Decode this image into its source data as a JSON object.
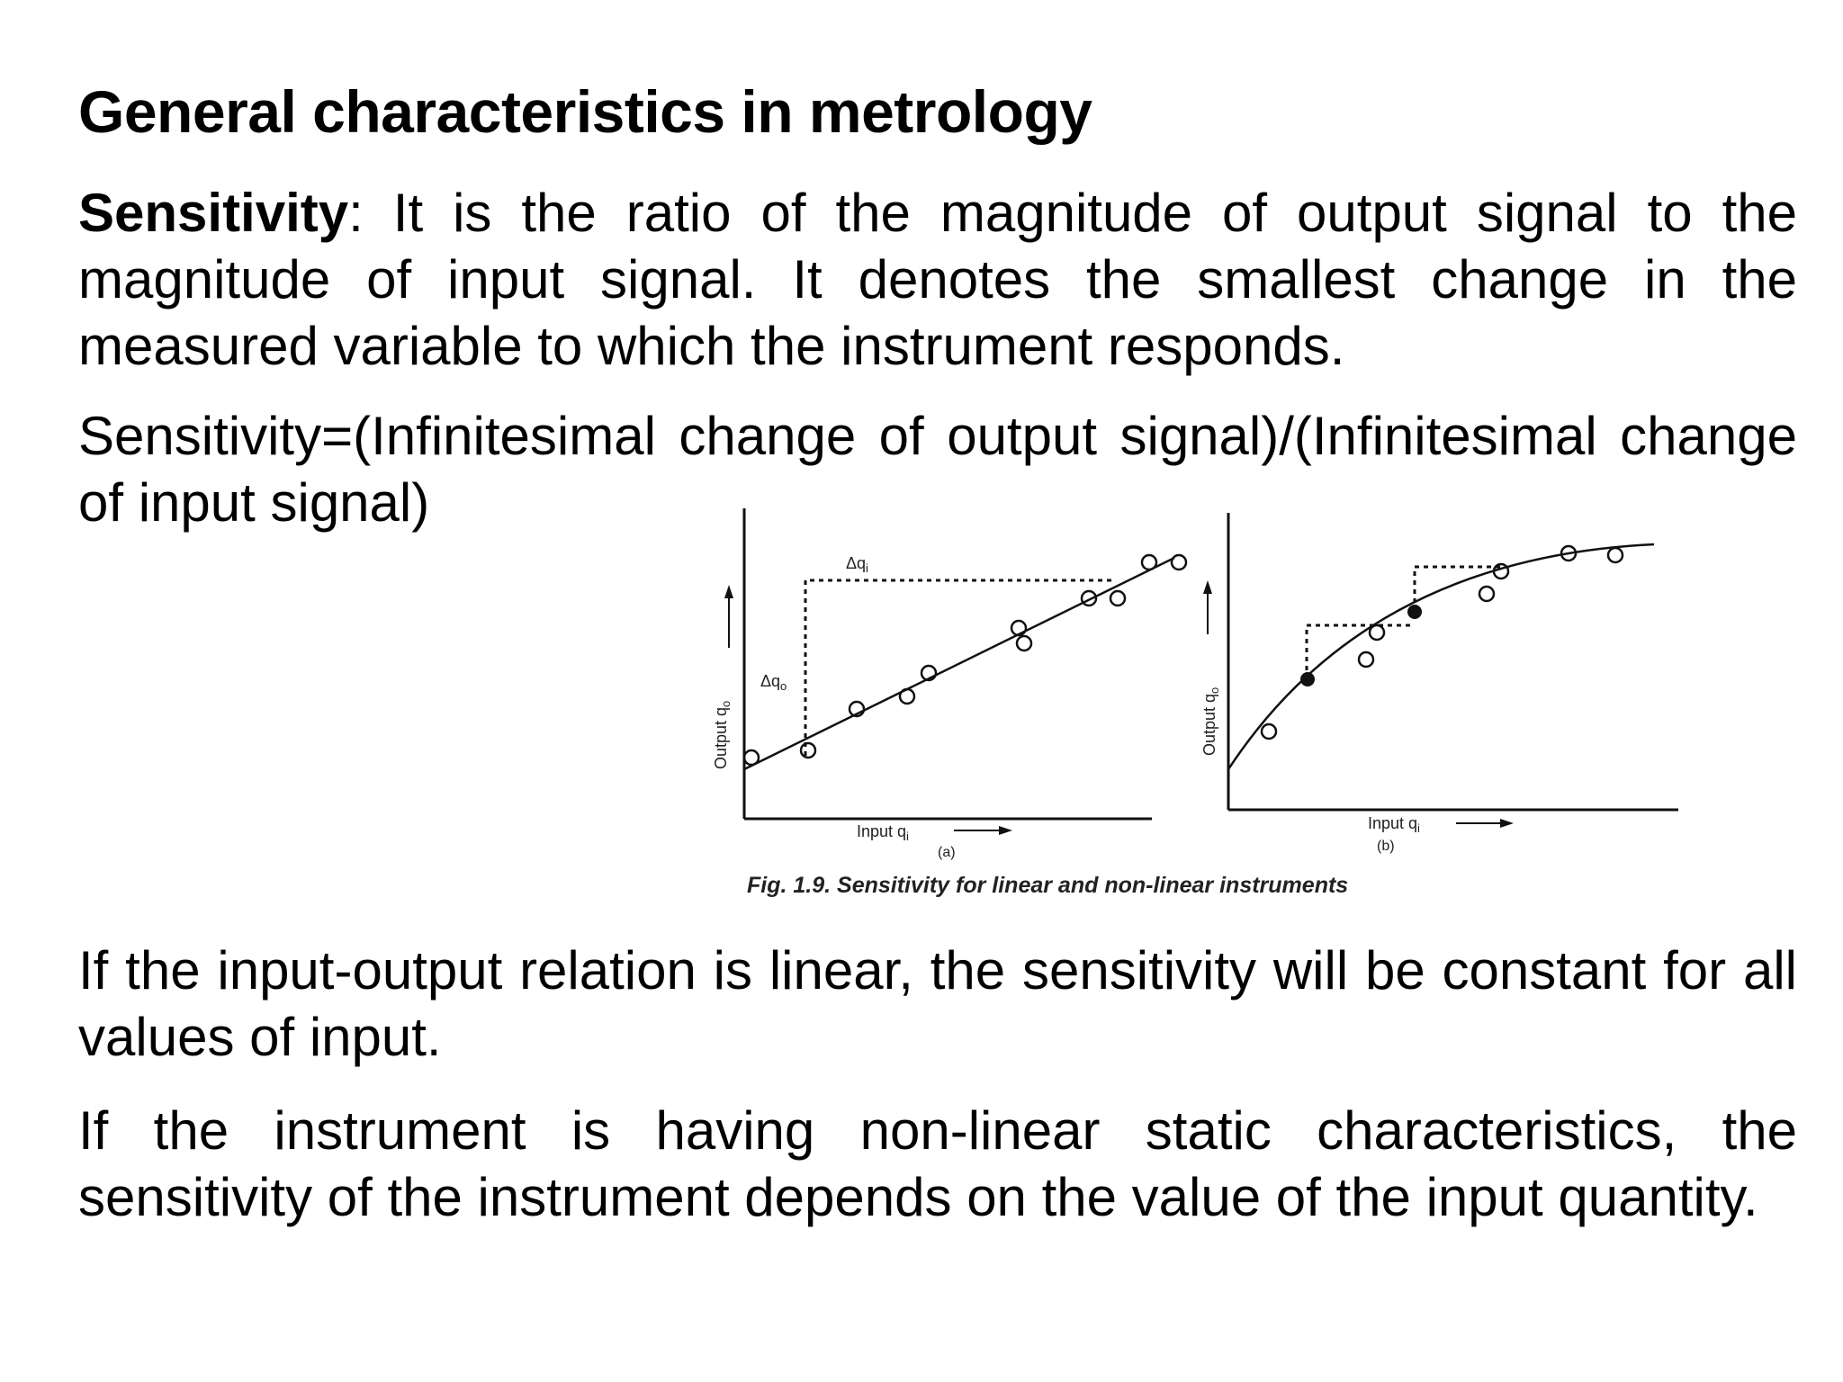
{
  "title": "General characteristics in metrology",
  "paragraph1": {
    "term": "Sensitivity",
    "separator": ":",
    "text": " It is the ratio of the magnitude of output signal to the magnitude of input signal. It denotes the smallest change in the measured variable to which the instrument responds."
  },
  "paragraph2": {
    "text": "Sensitivity=(Infinitesimal change of output signal)/(Infinitesimal change of input signal)"
  },
  "figure": {
    "left_panel": {
      "ylabel": "Output q",
      "ylabel_sub": "o",
      "xlabel": "Input q",
      "xlabel_sub": "i",
      "delta_input": "Δq",
      "delta_input_sub": "i",
      "delta_output": "Δq",
      "delta_output_sub": "o",
      "panel_label": "(a)"
    },
    "right_panel": {
      "ylabel": "Output q",
      "ylabel_sub": "o",
      "xlabel": "Input q",
      "xlabel_sub": "i",
      "panel_label": "(b)"
    },
    "caption": "Fig. 1.9. Sensitivity for linear and non-linear instruments"
  },
  "paragraph3": {
    "text": "If the input-output relation is linear, the sensitivity will be constant for all values of input."
  },
  "paragraph4": {
    "text": "If the instrument is having non-linear static characteristics, the sensitivity of the instrument depends on the value of the input quantity."
  }
}
